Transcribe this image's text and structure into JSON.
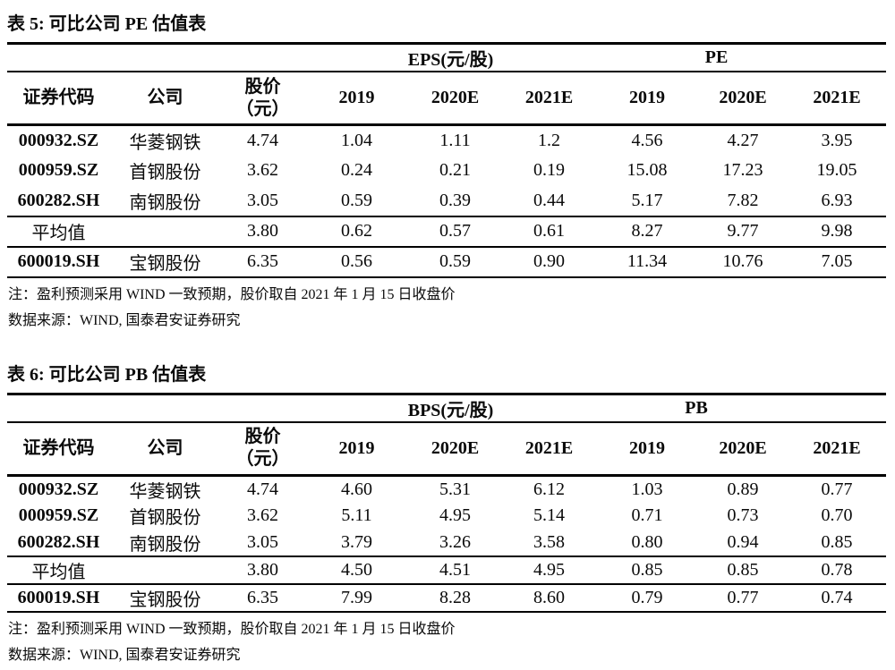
{
  "page": {
    "background": "#ffffff",
    "text_color": "#0a0a0a",
    "rule_color": "#000000"
  },
  "tables": [
    {
      "title": "表 5: 可比公司 PE 估值表",
      "group_left": "EPS(元/股)",
      "group_right": "PE",
      "col_headers": [
        "证券代码",
        "公司",
        "股价\n（元）",
        "2019",
        "2020E",
        "2021E",
        "2019",
        "2020E",
        "2021E"
      ],
      "rows": [
        [
          "000932.SZ",
          "华菱钢铁",
          "4.74",
          "1.04",
          "1.11",
          "1.2",
          "4.56",
          "4.27",
          "3.95"
        ],
        [
          "000959.SZ",
          "首钢股份",
          "3.62",
          "0.24",
          "0.21",
          "0.19",
          "15.08",
          "17.23",
          "19.05"
        ],
        [
          "600282.SH",
          "南钢股份",
          "3.05",
          "0.59",
          "0.39",
          "0.44",
          "5.17",
          "7.82",
          "6.93"
        ]
      ],
      "average_row": [
        "平均值",
        "",
        "3.80",
        "0.62",
        "0.57",
        "0.61",
        "8.27",
        "9.77",
        "9.98"
      ],
      "highlight_row": [
        "600019.SH",
        "宝钢股份",
        "6.35",
        "0.56",
        "0.59",
        "0.90",
        "11.34",
        "10.76",
        "7.05"
      ],
      "note": "注：盈利预测采用 WIND 一致预期，股价取自 2021 年 1 月 15 日收盘价",
      "source": "数据来源：WIND, 国泰君安证券研究"
    },
    {
      "title": "表 6: 可比公司 PB 估值表",
      "group_left": "BPS(元/股)",
      "group_right": "PB",
      "col_headers": [
        "证券代码",
        "公司",
        "股价\n（元）",
        "2019",
        "2020E",
        "2021E",
        "2019",
        "2020E",
        "2021E"
      ],
      "rows": [
        [
          "000932.SZ",
          "华菱钢铁",
          "4.74",
          "4.60",
          "5.31",
          "6.12",
          "1.03",
          "0.89",
          "0.77"
        ],
        [
          "000959.SZ",
          "首钢股份",
          "3.62",
          "5.11",
          "4.95",
          "5.14",
          "0.71",
          "0.73",
          "0.70"
        ],
        [
          "600282.SH",
          "南钢股份",
          "3.05",
          "3.79",
          "3.26",
          "3.58",
          "0.80",
          "0.94",
          "0.85"
        ]
      ],
      "average_row": [
        "平均值",
        "",
        "3.80",
        "4.50",
        "4.51",
        "4.95",
        "0.85",
        "0.85",
        "0.78"
      ],
      "highlight_row": [
        "600019.SH",
        "宝钢股份",
        "6.35",
        "7.99",
        "8.28",
        "8.60",
        "0.79",
        "0.77",
        "0.74"
      ],
      "note": "注：盈利预测采用 WIND 一致预期，股价取自 2021 年 1 月 15 日收盘价",
      "source": "数据来源：WIND, 国泰君安证券研究"
    }
  ]
}
